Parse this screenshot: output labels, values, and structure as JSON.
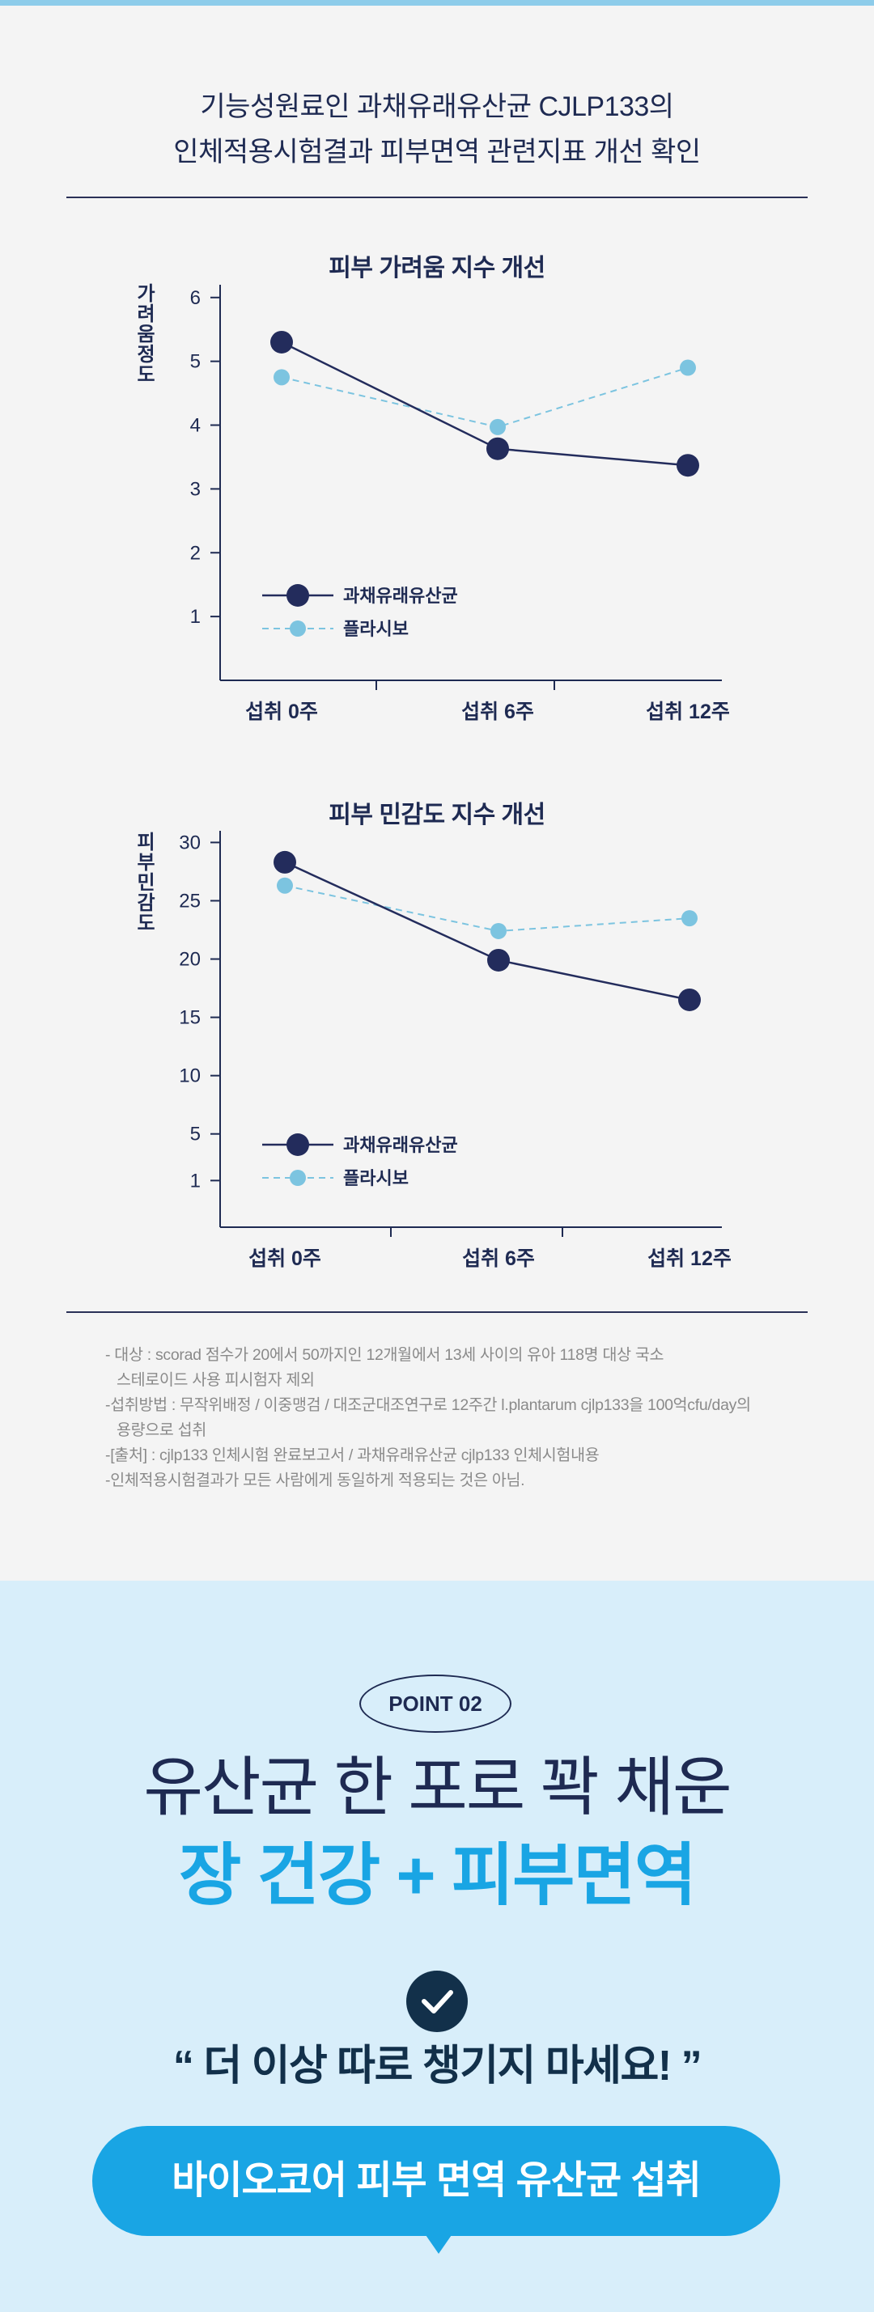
{
  "intro": {
    "line1": "기능성원료인 과채유래유산균 CJLP133의",
    "line2": "인체적용시험결과 피부면역 관련지표 개선 확인"
  },
  "chart_data": [
    {
      "type": "line",
      "title": "피부 가려움 지수 개선",
      "ylabel": "가려움정도",
      "xlabel": "",
      "categories": [
        "섭취 0주",
        "섭취 6주",
        "섭취 12주"
      ],
      "yticks": [
        1,
        2,
        3,
        4,
        5,
        6
      ],
      "ylim": [
        0,
        6.2
      ],
      "series": [
        {
          "name": "과채유래유산균",
          "values": [
            5.3,
            3.63,
            3.37
          ],
          "color": "#232c5c",
          "style": "solid"
        },
        {
          "name": "플라시보",
          "values": [
            4.75,
            3.97,
            4.9
          ],
          "color": "#7cc4e0",
          "style": "dashed"
        }
      ],
      "legend": "bottom-left",
      "grid": false
    },
    {
      "type": "line",
      "title": "피부 민감도 지수 개선",
      "ylabel": "피부민감도",
      "xlabel": "",
      "categories": [
        "섭취 0주",
        "섭취 6주",
        "섭취 12주"
      ],
      "yticks": [
        1,
        5,
        10,
        15,
        20,
        25,
        30
      ],
      "ylim": [
        -3,
        31
      ],
      "series": [
        {
          "name": "과채유래유산균",
          "values": [
            28.3,
            19.9,
            16.5
          ],
          "color": "#232c5c",
          "style": "solid"
        },
        {
          "name": "플라시보",
          "values": [
            26.3,
            22.4,
            23.5
          ],
          "color": "#7cc4e0",
          "style": "dashed"
        }
      ],
      "legend": "bottom-left",
      "grid": false
    }
  ],
  "notes": [
    "- 대상 : scorad 점수가 20에서 50까지인 12개월에서 13세 사이의 유아 118명 대상 국소",
    "스테로이드 사용 피시험자 제외",
    "-섭취방법 : 무작위배정 / 이중맹검 / 대조군대조연구로 12주간 l.plantarum cjlp133을 100억cfu/day의",
    "용량으로 섭취",
    "-[출처] : cjlp133 인체시험 완료보고서 / 과채유래유산균 cjlp133 인체시험내용",
    "-인체적용시험결과가 모든 사람에게 동일하게 적용되는 것은 아님."
  ],
  "point": {
    "badge": "POINT 02",
    "headline1": "유산균 한 포로 꽉 채운",
    "headline2": "장 건강 + 피부면역",
    "check_icon": "check-circle-icon",
    "quote": "“ 더 이상 따로 챙기지 마세요! ”",
    "cta": "바이오코어 피부 면역 유산균 섭취"
  }
}
